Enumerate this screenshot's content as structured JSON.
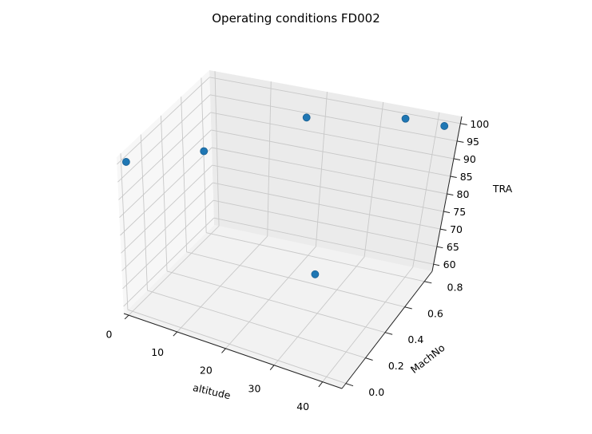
{
  "chart_data": {
    "type": "scatter",
    "title": "Operating conditions FD002",
    "xlabel": "altitude",
    "ylabel": "MachNo",
    "zlabel": "TRA",
    "x_ticks": [
      "0",
      "10",
      "20",
      "30",
      "40"
    ],
    "y_ticks": [
      "0.0",
      "0.2",
      "0.4",
      "0.6",
      "0.8"
    ],
    "z_ticks": [
      "60",
      "65",
      "70",
      "75",
      "80",
      "85",
      "90",
      "95",
      "100"
    ],
    "xlim": [
      -1,
      44
    ],
    "ylim": [
      -0.04,
      0.88
    ],
    "zlim": [
      58,
      102
    ],
    "grid": true,
    "points": [
      {
        "x": 0,
        "y": 0.0,
        "z": 100
      },
      {
        "x": 10,
        "y": 0.25,
        "z": 100
      },
      {
        "x": 20,
        "y": 0.7,
        "z": 100
      },
      {
        "x": 25,
        "y": 0.62,
        "z": 60
      },
      {
        "x": 35,
        "y": 0.84,
        "z": 100
      },
      {
        "x": 42,
        "y": 0.84,
        "z": 100
      }
    ],
    "marker_color": "#1f77b4"
  }
}
